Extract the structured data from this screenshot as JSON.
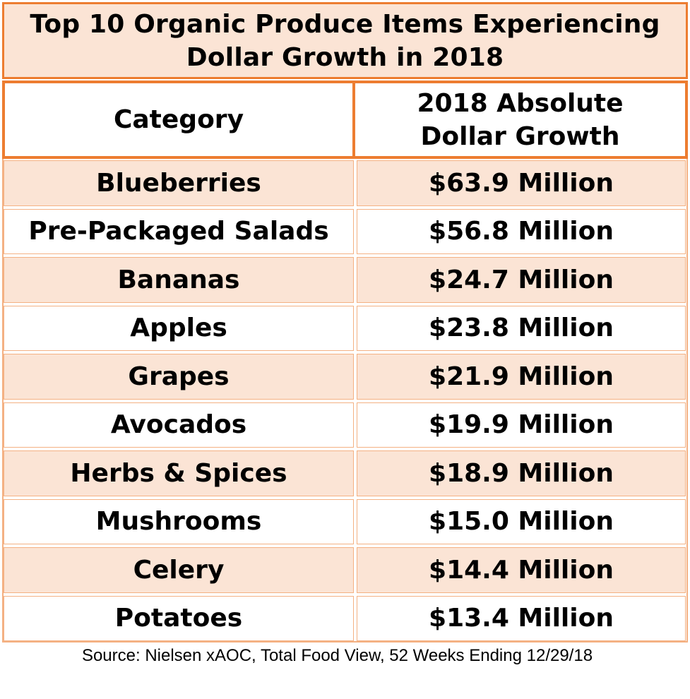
{
  "chart_data": {
    "type": "table",
    "title": "Top 10 Organic Produce Items Experiencing Dollar Growth in 2018",
    "title_lines": [
      "Top 10 Organic Produce Items Experiencing",
      "Dollar Growth in 2018"
    ],
    "columns": [
      "Category",
      "2018 Absolute Dollar Growth"
    ],
    "column2_lines": [
      "2018 Absolute",
      "Dollar Growth"
    ],
    "rows": [
      {
        "category": "Blueberries",
        "growth": "$63.9 Million",
        "value_millions": 63.9
      },
      {
        "category": "Pre-Packaged Salads",
        "growth": "$56.8 Million",
        "value_millions": 56.8
      },
      {
        "category": "Bananas",
        "growth": "$24.7 Million",
        "value_millions": 24.7
      },
      {
        "category": "Apples",
        "growth": "$23.8 Million",
        "value_millions": 23.8
      },
      {
        "category": "Grapes",
        "growth": "$21.9 Million",
        "value_millions": 21.9
      },
      {
        "category": "Avocados",
        "growth": "$19.9 Million",
        "value_millions": 19.9
      },
      {
        "category": "Herbs & Spices",
        "growth": "$18.9 Million",
        "value_millions": 18.9
      },
      {
        "category": "Mushrooms",
        "growth": "$15.0 Million",
        "value_millions": 15.0
      },
      {
        "category": "Celery",
        "growth": "$14.4 Million",
        "value_millions": 14.4
      },
      {
        "category": "Potatoes",
        "growth": "$13.4 Million",
        "value_millions": 13.4
      }
    ],
    "source": "Source: Nielsen xAOC, Total Food View, 52 Weeks Ending 12/29/18"
  },
  "colors": {
    "accent_border": "#ed7d31",
    "row_border": "#f4b183",
    "shaded_row": "#fbe4d5",
    "plain_row": "#ffffff"
  }
}
